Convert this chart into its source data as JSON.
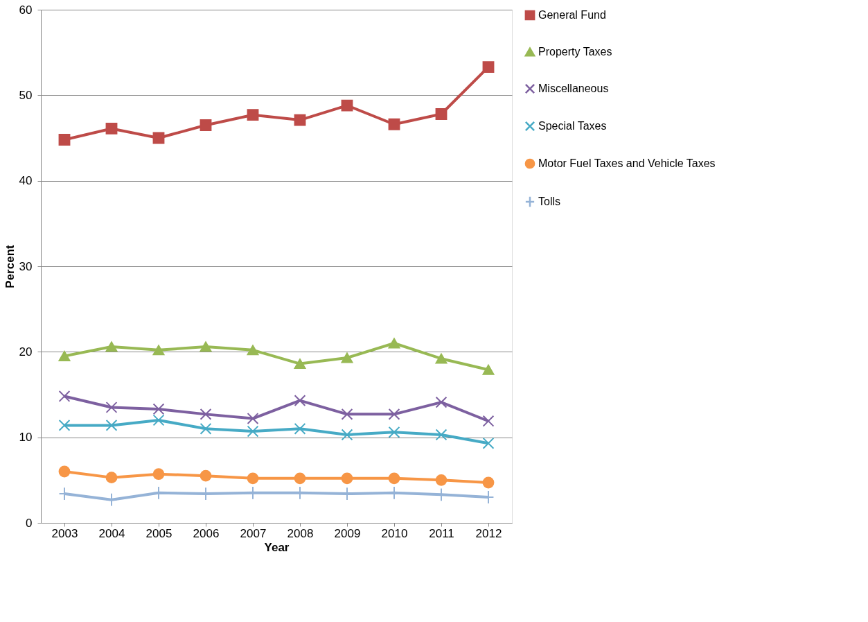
{
  "chart_data": {
    "type": "line",
    "xlabel": "Year",
    "ylabel": "Percent",
    "categories": [
      "2003",
      "2004",
      "2005",
      "2006",
      "2007",
      "2008",
      "2009",
      "2010",
      "2011",
      "2012"
    ],
    "ylim": [
      0,
      60
    ],
    "yticks": [
      0,
      10,
      20,
      30,
      40,
      50,
      60
    ],
    "grid": "y",
    "legend": "right",
    "series": [
      {
        "name": "General Fund",
        "color": "#be4b48",
        "marker": "square",
        "values": [
          44.8,
          46.1,
          45.0,
          46.5,
          47.7,
          47.1,
          48.8,
          46.6,
          47.8,
          53.3
        ]
      },
      {
        "name": "Property Taxes",
        "color": "#98b954",
        "marker": "triangle",
        "values": [
          19.5,
          20.6,
          20.2,
          20.6,
          20.2,
          18.6,
          19.3,
          21.0,
          19.2,
          17.9
        ]
      },
      {
        "name": "Miscellaneous",
        "color": "#7d60a0",
        "marker": "cross",
        "values": [
          14.8,
          13.5,
          13.3,
          12.7,
          12.2,
          14.3,
          12.7,
          12.7,
          14.1,
          11.9
        ]
      },
      {
        "name": "Special Taxes",
        "color": "#46aac5",
        "marker": "cross",
        "values": [
          11.4,
          11.4,
          12.0,
          11.0,
          10.7,
          11.0,
          10.3,
          10.6,
          10.3,
          9.3
        ]
      },
      {
        "name": "Motor Fuel Taxes and Vehicle Taxes",
        "color": "#f79646",
        "marker": "circle",
        "values": [
          6.0,
          5.3,
          5.7,
          5.5,
          5.2,
          5.2,
          5.2,
          5.2,
          5.0,
          4.7
        ]
      },
      {
        "name": "Tolls",
        "color": "#95b3d7",
        "marker": "plus",
        "values": [
          3.4,
          2.7,
          3.5,
          3.4,
          3.5,
          3.5,
          3.4,
          3.5,
          3.3,
          3.0
        ]
      }
    ]
  }
}
